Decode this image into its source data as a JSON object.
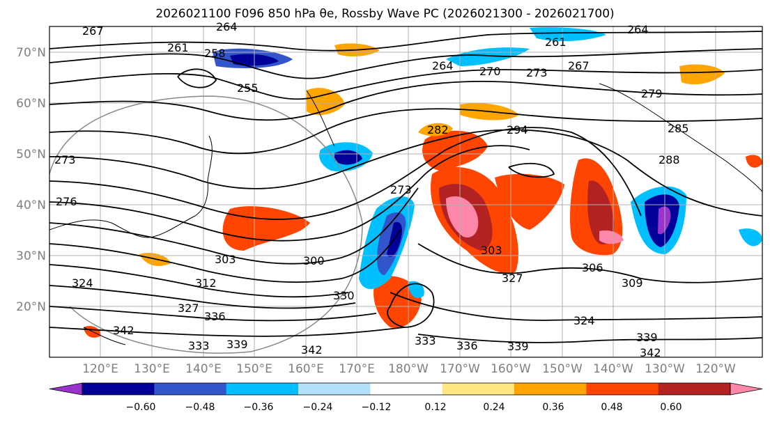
{
  "title": "2026021100 F096 850 hPa θe, Rossby Wave PC (2026021300 - 2026021700)",
  "lat_labels": [
    "70°N",
    "60°N",
    "50°N",
    "40°N",
    "30°N",
    "20°N"
  ],
  "lon_labels": [
    "120°E",
    "130°E",
    "140°E",
    "150°E",
    "160°E",
    "170°E",
    "180°W",
    "170°W",
    "160°W",
    "150°W",
    "140°W",
    "130°W",
    "120°W"
  ],
  "contour_labels": [
    "267",
    "264",
    "261",
    "258",
    "255",
    "264",
    "270",
    "273",
    "267",
    "279",
    "261",
    "264",
    "285",
    "288",
    "294",
    "282",
    "273",
    "276",
    "273",
    "303",
    "312",
    "300",
    "303",
    "306",
    "309",
    "327",
    "336",
    "330",
    "327",
    "324",
    "333",
    "336",
    "339",
    "342",
    "342",
    "339",
    "333",
    "342",
    "339",
    "324"
  ],
  "colorbar": {
    "ticks": [
      "−0.60",
      "−0.48",
      "−0.36",
      "−0.24",
      "−0.12",
      "0.12",
      "0.24",
      "0.36",
      "0.48",
      "0.60"
    ],
    "colors": [
      "#9933cc",
      "#000099",
      "#3355cc",
      "#00bfff",
      "#b3e0fa",
      "#ffffff",
      "#ffe680",
      "#ffa500",
      "#ff4500",
      "#b22222",
      "#ff88aa"
    ]
  }
}
